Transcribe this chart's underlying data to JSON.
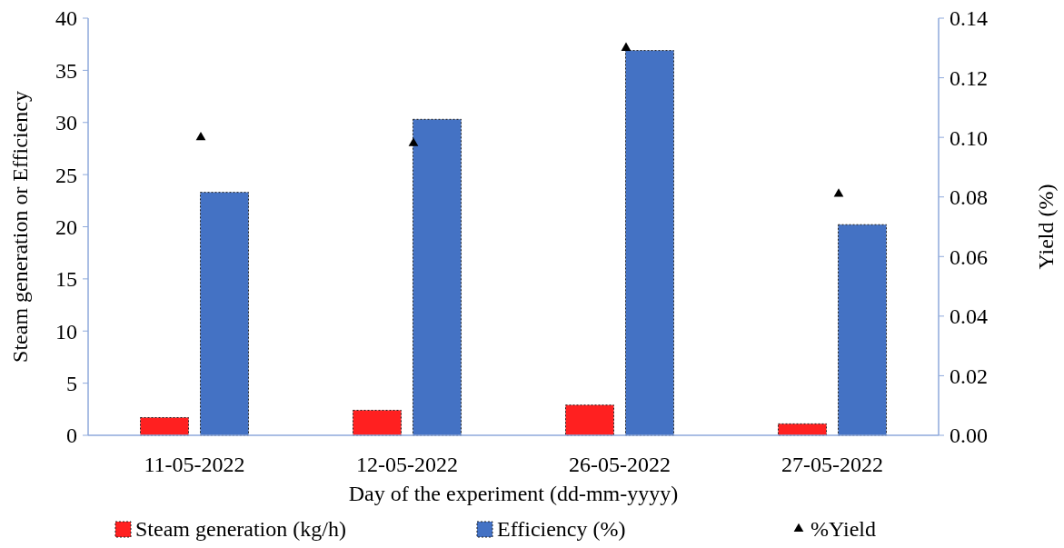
{
  "chart_data": {
    "type": "bar",
    "xlabel": "Day of the experiment (dd-mm-yyyy)",
    "ylabel": "Steam generation or Efficiency",
    "y2label": "Yield (%)",
    "categories": [
      "11-05-2022",
      "12-05-2022",
      "26-05-2022",
      "27-05-2022"
    ],
    "series": [
      {
        "name": "Steam generation (kg/h)",
        "color": "#ff2020",
        "values": [
          1.7,
          2.4,
          2.9,
          1.1
        ]
      },
      {
        "name": "Efficiency (%)",
        "color": "#4472c4",
        "values": [
          23.3,
          30.3,
          36.9,
          20.2
        ]
      },
      {
        "name": "%Yield",
        "type": "scatter",
        "axis": "y2",
        "color": "#000000",
        "marker": "triangle",
        "values": [
          0.1,
          0.098,
          0.13,
          0.081
        ]
      }
    ],
    "ylim": [
      0,
      40
    ],
    "yticks": [
      0,
      5,
      10,
      15,
      20,
      25,
      30,
      35,
      40
    ],
    "y2lim": [
      0,
      0.14
    ],
    "y2ticks": [
      {
        "value": 0,
        "label": "0.00"
      },
      {
        "value": 0.02,
        "label": "0.02"
      },
      {
        "value": 0.04,
        "label": "0.04"
      },
      {
        "value": 0.06,
        "label": "0.06"
      },
      {
        "value": 0.08,
        "label": "0.08"
      },
      {
        "value": 0.1,
        "label": "0.10"
      },
      {
        "value": 0.12,
        "label": "0.12"
      },
      {
        "value": 0.14,
        "label": "0.14"
      }
    ],
    "legend": "bottom",
    "grid": false
  }
}
